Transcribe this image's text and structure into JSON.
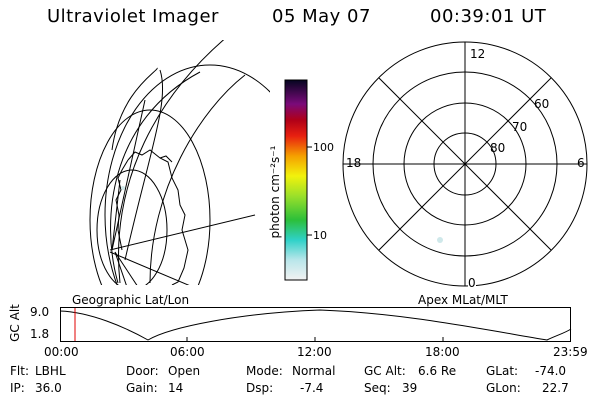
{
  "header": {
    "instrument": "Ultraviolet Imager",
    "date": "05 May 07",
    "time": "00:39:01 UT"
  },
  "colorbar": {
    "unit_label": "photon cm⁻²s⁻¹",
    "ticks": [
      "100",
      "10"
    ]
  },
  "polar": {
    "mlt_labels": {
      "top": "12",
      "left": "18",
      "right": "6",
      "bottom": "0"
    },
    "lat_labels": [
      "60",
      "70",
      "80"
    ]
  },
  "timeline": {
    "left_label": "Geographic Lat/Lon",
    "right_label": "Apex MLat/MLT",
    "axis_label": "GC Alt",
    "y_ticks": [
      "9.0",
      "1.8"
    ],
    "x_ticks": [
      "00:00",
      "06:00",
      "12:00",
      "18:00",
      "23:59"
    ],
    "marker_time": "00:39"
  },
  "info": {
    "flt_label": "Flt:",
    "flt_value": "LBHL",
    "ip_label": "IP:",
    "ip_value": "36.0",
    "door_label": "Door:",
    "door_value": "Open",
    "gain_label": "Gain:",
    "gain_value": "14",
    "mode_label": "Mode:",
    "mode_value": "Normal",
    "dsp_label": "Dsp:",
    "dsp_value": "-7.4",
    "gcalt_label": "GC Alt:",
    "gcalt_value": "6.6 Re",
    "seq_label": "Seq:",
    "seq_value": "39",
    "glat_label": "GLat:",
    "glat_value": "-74.0",
    "glon_label": "GLon:",
    "glon_value": "22.7"
  }
}
